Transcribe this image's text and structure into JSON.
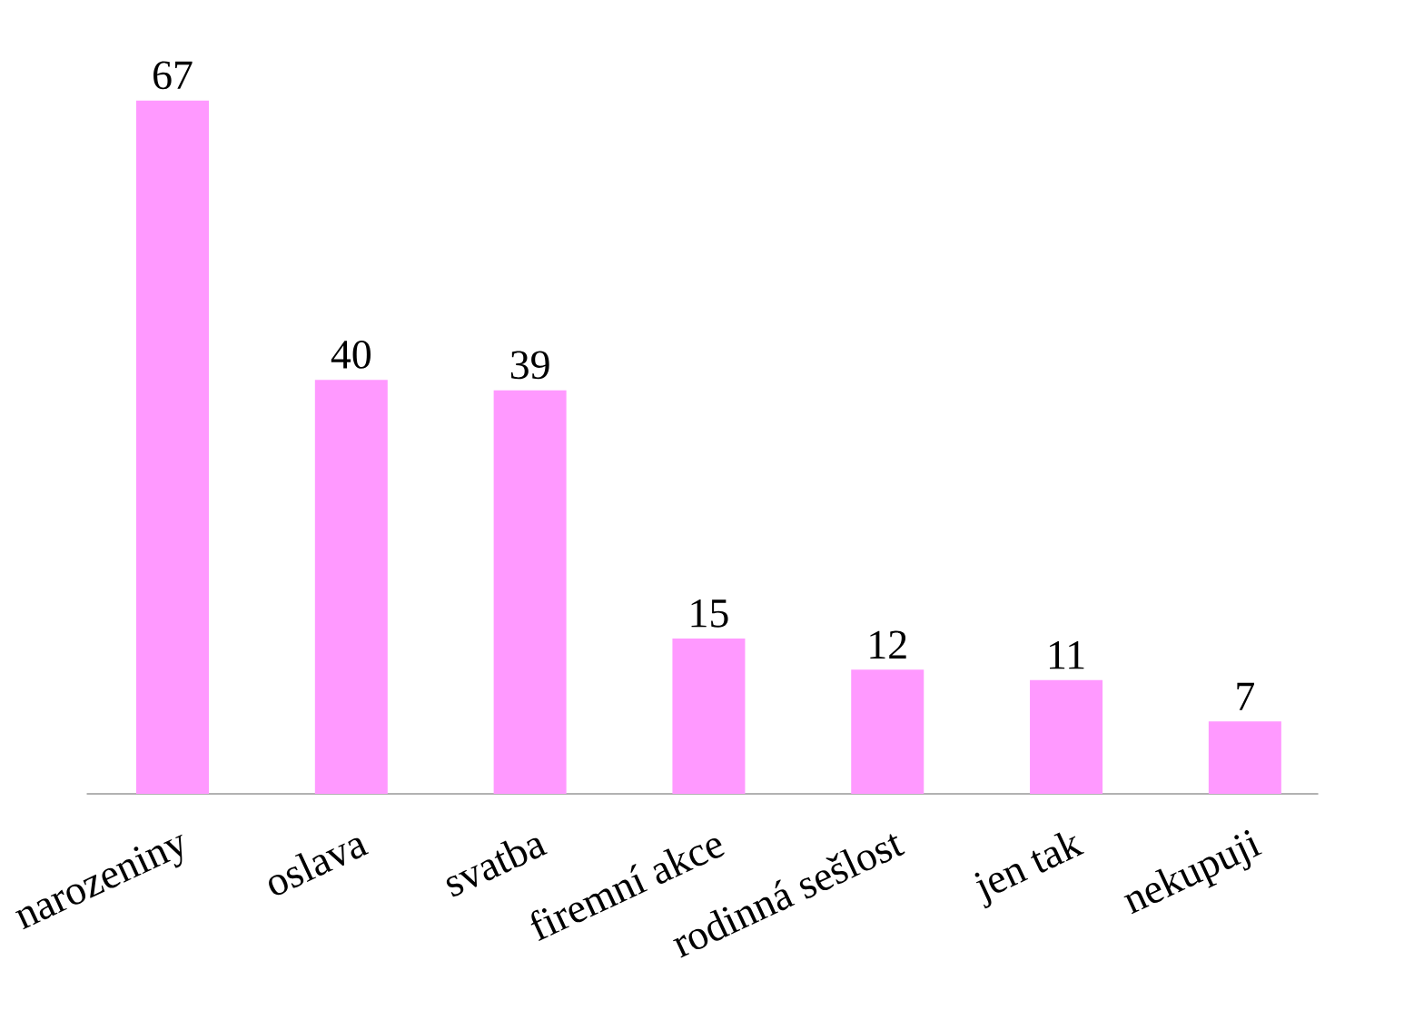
{
  "chart_data": {
    "type": "bar",
    "categories": [
      "narozeniny",
      "oslava",
      "svatba",
      "firemní akce",
      "rodinná sešlost",
      "jen tak",
      "nekupuji"
    ],
    "values": [
      67,
      40,
      39,
      15,
      12,
      11,
      7
    ],
    "color": "#ff99ff",
    "data_labels": true
  }
}
